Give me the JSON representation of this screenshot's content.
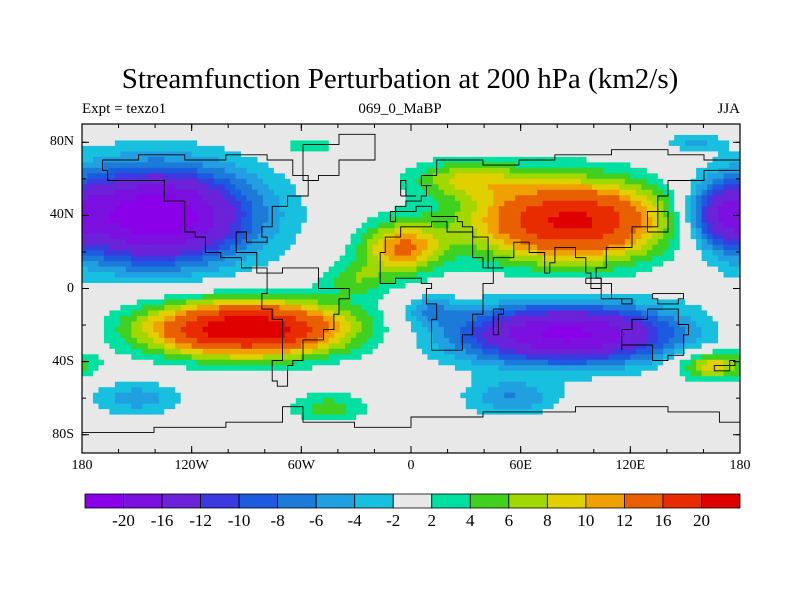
{
  "title": "Streamfunction Perturbation at 200 hPa (km2/s)",
  "subtitle": {
    "left": "Expt = texzo1",
    "center": "069_0_MaBP",
    "right": "JJA"
  },
  "axes": {
    "y_ticks": [
      {
        "value": 80,
        "label": "80N"
      },
      {
        "value": 40,
        "label": "40N"
      },
      {
        "value": 0,
        "label": "0"
      },
      {
        "value": -40,
        "label": "40S"
      },
      {
        "value": -80,
        "label": "80S"
      }
    ],
    "x_ticks": [
      {
        "value": -180,
        "label": "180"
      },
      {
        "value": -120,
        "label": "120W"
      },
      {
        "value": -60,
        "label": "60W"
      },
      {
        "value": 0,
        "label": "0"
      },
      {
        "value": 60,
        "label": "60E"
      },
      {
        "value": 120,
        "label": "120E"
      },
      {
        "value": 180,
        "label": "180"
      }
    ],
    "lon_range": [
      -180,
      180
    ],
    "lat_range": [
      -90,
      90
    ]
  },
  "colorbar": {
    "colors": [
      "#8a00e8",
      "#7b10e0",
      "#6b22d8",
      "#3a3ae0",
      "#1c5adf",
      "#1c7ad8",
      "#20a0e0",
      "#18c0e0",
      "#e8e8e8",
      "#00e0a0",
      "#40d020",
      "#a0d800",
      "#e0d000",
      "#f0a000",
      "#e86000",
      "#e82c00",
      "#e00000"
    ],
    "labels": [
      "-20",
      "-16",
      "-12",
      "-10",
      "-8",
      "-6",
      "-4",
      "-2",
      "2",
      "4",
      "6",
      "8",
      "10",
      "12",
      "16",
      "20"
    ]
  },
  "field_blobs": [
    {
      "lon": -140,
      "lat": 40,
      "rlon": 52,
      "rlat": 26,
      "amp": -24
    },
    {
      "lon": -90,
      "lat": -22,
      "rlon": 55,
      "rlat": 15,
      "amp": 24
    },
    {
      "lon": 88,
      "lat": 37,
      "rlon": 55,
      "rlat": 22,
      "amp": 21
    },
    {
      "lon": 85,
      "lat": -25,
      "rlon": 60,
      "rlat": 16,
      "amp": -21
    },
    {
      "lon": -5,
      "lat": 22,
      "rlon": 22,
      "rlat": 14,
      "amp": 12
    },
    {
      "lon": 30,
      "lat": 60,
      "rlon": 30,
      "rlat": 10,
      "amp": 7
    },
    {
      "lon": -45,
      "lat": -65,
      "rlon": 22,
      "rlat": 8,
      "amp": 5
    },
    {
      "lon": 55,
      "lat": -60,
      "rlon": 25,
      "rlat": 10,
      "amp": -6
    },
    {
      "lon": -150,
      "lat": -60,
      "rlon": 25,
      "rlat": 10,
      "amp": -5
    },
    {
      "lon": 170,
      "lat": 40,
      "rlon": 18,
      "rlat": 16,
      "amp": -10
    },
    {
      "lon": 165,
      "lat": -42,
      "rlon": 20,
      "rlat": 8,
      "amp": 10
    },
    {
      "lon": -55,
      "lat": 78,
      "rlon": 15,
      "rlat": 5,
      "amp": 4
    },
    {
      "lon": 155,
      "lat": 80,
      "rlon": 15,
      "rlat": 5,
      "amp": -4
    },
    {
      "lon": -30,
      "lat": 5,
      "rlon": 18,
      "rlat": 10,
      "amp": 5
    },
    {
      "lon": 10,
      "lat": -12,
      "rlon": 15,
      "rlat": 8,
      "amp": -5
    }
  ],
  "coastlines": [
    [
      [
        -170,
        70
      ],
      [
        -150,
        72
      ],
      [
        -125,
        70
      ],
      [
        -100,
        72
      ],
      [
        -80,
        70
      ],
      [
        -65,
        62
      ],
      [
        -55,
        52
      ],
      [
        -67,
        45
      ],
      [
        -75,
        35
      ],
      [
        -81,
        27
      ],
      [
        -80,
        25
      ],
      [
        -90,
        30
      ],
      [
        -97,
        27
      ],
      [
        -97,
        20
      ],
      [
        -87,
        21
      ],
      [
        -84,
        10
      ],
      [
        -78,
        8
      ],
      [
        -85,
        12
      ],
      [
        -94,
        16
      ],
      [
        -105,
        20
      ],
      [
        -112,
        29
      ],
      [
        -117,
        32
      ],
      [
        -124,
        40
      ],
      [
        -124,
        48
      ],
      [
        -135,
        58
      ],
      [
        -150,
        60
      ],
      [
        -165,
        60
      ],
      [
        -165,
        65
      ],
      [
        -170,
        70
      ]
    ],
    [
      [
        -78,
        8
      ],
      [
        -70,
        12
      ],
      [
        -60,
        10
      ],
      [
        -50,
        0
      ],
      [
        -35,
        -5
      ],
      [
        -38,
        -15
      ],
      [
        -41,
        -22
      ],
      [
        -48,
        -28
      ],
      [
        -58,
        -38
      ],
      [
        -65,
        -42
      ],
      [
        -68,
        -54
      ],
      [
        -72,
        -50
      ],
      [
        -75,
        -40
      ],
      [
        -71,
        -30
      ],
      [
        -70,
        -18
      ],
      [
        -77,
        -12
      ],
      [
        -81,
        -4
      ],
      [
        -79,
        2
      ],
      [
        -78,
        8
      ]
    ],
    [
      [
        -10,
        36
      ],
      [
        -9,
        44
      ],
      [
        -2,
        44
      ],
      [
        -4,
        48
      ],
      [
        5,
        52
      ],
      [
        8,
        55
      ],
      [
        12,
        57
      ],
      [
        6,
        62
      ],
      [
        15,
        69
      ],
      [
        28,
        71
      ],
      [
        40,
        67
      ],
      [
        60,
        70
      ],
      [
        80,
        73
      ],
      [
        110,
        76
      ],
      [
        140,
        72
      ],
      [
        160,
        70
      ],
      [
        180,
        68
      ],
      [
        180,
        65
      ],
      [
        160,
        60
      ],
      [
        142,
        52
      ],
      [
        135,
        43
      ],
      [
        128,
        35
      ],
      [
        122,
        30
      ],
      [
        120,
        22
      ],
      [
        108,
        20
      ],
      [
        106,
        10
      ],
      [
        100,
        5
      ],
      [
        104,
        1
      ],
      [
        98,
        8
      ],
      [
        95,
        17
      ],
      [
        90,
        22
      ],
      [
        80,
        15
      ],
      [
        77,
        8
      ],
      [
        72,
        20
      ],
      [
        66,
        25
      ],
      [
        58,
        24
      ],
      [
        55,
        18
      ],
      [
        44,
        12
      ],
      [
        38,
        18
      ],
      [
        34,
        28
      ],
      [
        35,
        33
      ],
      [
        28,
        37
      ],
      [
        26,
        40
      ],
      [
        20,
        40
      ],
      [
        15,
        38
      ],
      [
        12,
        44
      ],
      [
        4,
        43
      ],
      [
        -10,
        36
      ]
    ],
    [
      [
        -17,
        21
      ],
      [
        -15,
        28
      ],
      [
        -6,
        35
      ],
      [
        10,
        37
      ],
      [
        20,
        32
      ],
      [
        32,
        31
      ],
      [
        34,
        28
      ],
      [
        43,
        12
      ],
      [
        51,
        12
      ],
      [
        45,
        3
      ],
      [
        40,
        -10
      ],
      [
        40,
        -15
      ],
      [
        35,
        -24
      ],
      [
        28,
        -33
      ],
      [
        18,
        -34
      ],
      [
        12,
        -18
      ],
      [
        13,
        -8
      ],
      [
        9,
        0
      ],
      [
        10,
        4
      ],
      [
        5,
        6
      ],
      [
        -8,
        4
      ],
      [
        -17,
        14
      ],
      [
        -17,
        21
      ]
    ],
    [
      [
        114,
        -22
      ],
      [
        122,
        -18
      ],
      [
        130,
        -12
      ],
      [
        137,
        -12
      ],
      [
        142,
        -11
      ],
      [
        146,
        -19
      ],
      [
        153,
        -26
      ],
      [
        150,
        -37
      ],
      [
        140,
        -38
      ],
      [
        132,
        -32
      ],
      [
        116,
        -35
      ],
      [
        115,
        -30
      ],
      [
        114,
        -22
      ]
    ],
    [
      [
        -50,
        60
      ],
      [
        -60,
        78
      ],
      [
        -40,
        83
      ],
      [
        -20,
        80
      ],
      [
        -20,
        70
      ],
      [
        -40,
        62
      ],
      [
        -50,
        60
      ]
    ],
    [
      [
        -5,
        50
      ],
      [
        2,
        52
      ],
      [
        -3,
        58
      ],
      [
        -6,
        55
      ],
      [
        -5,
        50
      ]
    ],
    [
      [
        44,
        -12
      ],
      [
        50,
        -15
      ],
      [
        48,
        -25
      ],
      [
        44,
        -23
      ],
      [
        44,
        -12
      ]
    ],
    [
      [
        130,
        31
      ],
      [
        140,
        36
      ],
      [
        142,
        42
      ],
      [
        135,
        35
      ],
      [
        130,
        31
      ]
    ],
    [
      [
        95,
        5
      ],
      [
        105,
        -6
      ],
      [
        115,
        -8
      ],
      [
        120,
        -5
      ],
      [
        110,
        2
      ],
      [
        95,
        5
      ]
    ],
    [
      [
        132,
        -2
      ],
      [
        150,
        -6
      ],
      [
        145,
        -9
      ],
      [
        135,
        -5
      ],
      [
        132,
        -2
      ]
    ],
    [
      [
        166,
        -46
      ],
      [
        174,
        -41
      ],
      [
        178,
        -38
      ],
      [
        173,
        -43
      ],
      [
        166,
        -46
      ]
    ],
    [
      [
        -180,
        -78
      ],
      [
        -140,
        -76
      ],
      [
        -100,
        -73
      ],
      [
        -70,
        -66
      ],
      [
        -60,
        -72
      ],
      [
        -30,
        -77
      ],
      [
        0,
        -70
      ],
      [
        40,
        -68
      ],
      [
        90,
        -66
      ],
      [
        140,
        -67
      ],
      [
        170,
        -72
      ],
      [
        180,
        -78
      ]
    ]
  ]
}
